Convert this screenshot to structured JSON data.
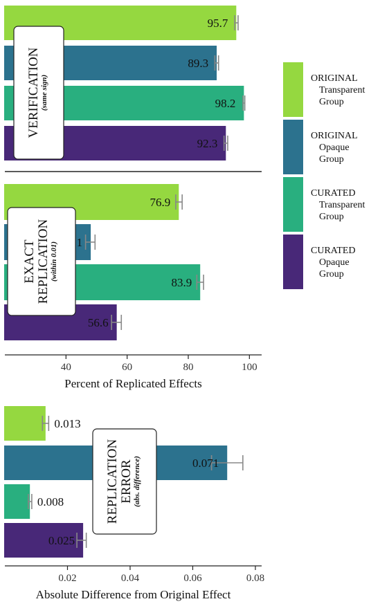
{
  "colors": {
    "original_transparent": "#95d840",
    "original_opaque": "#2c728e",
    "curated_transparent": "#29af7f",
    "curated_opaque": "#482878",
    "error_bar": "#888888"
  },
  "legend": [
    {
      "title": "ORIGINAL",
      "sub1": "Transparent",
      "sub2": "Group",
      "color_key": "original_transparent"
    },
    {
      "title": "ORIGINAL",
      "sub1": "Opaque",
      "sub2": "Group",
      "color_key": "original_opaque"
    },
    {
      "title": "CURATED",
      "sub1": "Transparent",
      "sub2": "Group",
      "color_key": "curated_transparent"
    },
    {
      "title": "CURATED",
      "sub1": "Opaque",
      "sub2": "Group",
      "color_key": "curated_opaque"
    }
  ],
  "chart_data": [
    {
      "type": "bar",
      "orientation": "horizontal",
      "panel_label": "VERIFICATION",
      "panel_sublabel": "(same sign)",
      "categories": [
        "ORIGINAL Transparent Group",
        "ORIGINAL Opaque Group",
        "CURATED Transparent Group",
        "CURATED Opaque Group"
      ],
      "values": [
        95.7,
        89.3,
        98.2,
        92.3
      ],
      "value_labels": [
        "95.7",
        "89.3",
        "98.2",
        "92.3"
      ],
      "error_low": [
        95.2,
        88.7,
        97.9,
        91.7
      ],
      "error_high": [
        96.3,
        89.9,
        98.5,
        92.9
      ],
      "xlim": [
        20,
        104
      ]
    },
    {
      "type": "bar",
      "orientation": "horizontal",
      "panel_label": "EXACT REPLICATION",
      "panel_sublabel": "(within 0.01)",
      "categories": [
        "ORIGINAL Transparent Group",
        "ORIGINAL Opaque Group",
        "CURATED Transparent Group",
        "CURATED Opaque Group"
      ],
      "values": [
        76.9,
        48.1,
        83.9,
        56.6
      ],
      "value_labels": [
        "76.9",
        "48.1",
        "83.9",
        "56.6"
      ],
      "error_low": [
        75.9,
        46.4,
        82.8,
        54.9
      ],
      "error_high": [
        78.0,
        49.5,
        85.0,
        58.1
      ],
      "xlim": [
        20,
        104
      ],
      "xticks": [
        40,
        60,
        80,
        100
      ],
      "xlabel": "Percent of Replicated Effects"
    },
    {
      "type": "bar",
      "orientation": "horizontal",
      "panel_label": "REPLICATION ERROR",
      "panel_sublabel": "(abs. difference)",
      "categories": [
        "ORIGINAL Transparent Group",
        "ORIGINAL Opaque Group",
        "CURATED Transparent Group",
        "CURATED Opaque Group"
      ],
      "values": [
        0.013,
        0.071,
        0.008,
        0.025
      ],
      "value_labels": [
        "0.013",
        "0.071",
        "0.008",
        "0.025"
      ],
      "error_low": [
        0.012,
        0.066,
        0.0075,
        0.023
      ],
      "error_high": [
        0.014,
        0.076,
        0.0086,
        0.026
      ],
      "xlim": [
        0,
        0.082
      ],
      "xticks": [
        0.02,
        0.04,
        0.06,
        0.08
      ],
      "xtick_labels": [
        "0.02",
        "0.04",
        "0.06",
        "0.08"
      ],
      "xlabel": "Absolute Difference from Original Effect"
    }
  ]
}
